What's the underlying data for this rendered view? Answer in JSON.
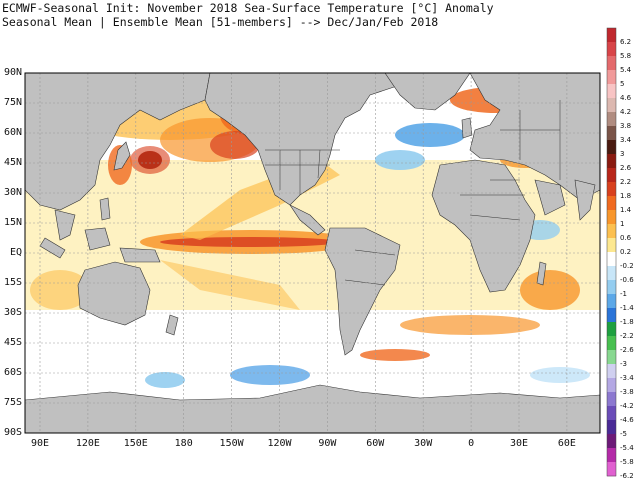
{
  "header": {
    "line1": "ECMWF-Seasonal Init: November 2018 Sea-Surface Temperature [°C] Anomaly",
    "line2": "Seasonal Mean | Ensemble Mean [51-members] --> Dec/Jan/Feb 2018"
  },
  "axes": {
    "lat_labels": [
      "90N",
      "75N",
      "60N",
      "45N",
      "30N",
      "15N",
      "EQ",
      "15S",
      "30S",
      "45S",
      "60S",
      "75S",
      "90S"
    ],
    "lon_labels": [
      "90E",
      "120E",
      "150E",
      "180",
      "150W",
      "120W",
      "90W",
      "60W",
      "30W",
      "0",
      "30E",
      "60E"
    ]
  },
  "colorbar": {
    "labels": [
      "6.2",
      "5.8",
      "5.4",
      "5",
      "4.6",
      "4.2",
      "3.8",
      "3.4",
      "3",
      "2.6",
      "2.2",
      "1.8",
      "1.4",
      "1",
      "0.6",
      "0.2",
      "-0.2",
      "-0.6",
      "-1",
      "-1.4",
      "-1.8",
      "-2.2",
      "-2.6",
      "-3",
      "-3.4",
      "-3.8",
      "-4.2",
      "-4.6",
      "-5",
      "-5.4",
      "-5.8",
      "-6.2"
    ],
    "colors": [
      "#c0282e",
      "#d84448",
      "#e46a6c",
      "#f19a9a",
      "#f8c4c4",
      "#dcb8b0",
      "#b08c80",
      "#7a5448",
      "#4a1a10",
      "#8a1a10",
      "#b8261a",
      "#d8401e",
      "#f06a20",
      "#f8962c",
      "#fcc050",
      "#fde890",
      "#ffffff",
      "#c8e6f8",
      "#94cdf0",
      "#5ca8e8",
      "#2a74d8",
      "#1ea040",
      "#48c050",
      "#88d890",
      "#d0d0f0",
      "#b4a8e4",
      "#8c78d0",
      "#6a4cb8",
      "#4a2a96",
      "#6c1a78",
      "#b42aa8",
      "#e060d0"
    ]
  },
  "layers": {
    "ocean_color": "#ffffff",
    "land_color": "#c0c0c0",
    "border_color": "#333333",
    "grid_color": "#999999"
  }
}
